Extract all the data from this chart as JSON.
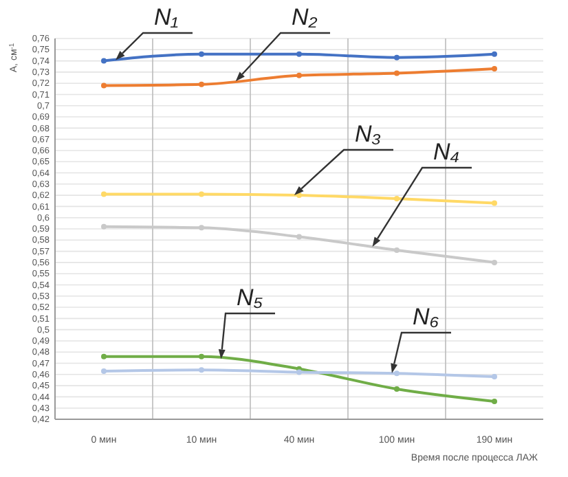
{
  "chart_data": {
    "type": "line",
    "ylabel": "A, см$^{-1}$",
    "xlabel": "Время после процесса ЛАЖ",
    "categories": [
      "0 мин",
      "10 мин",
      "40 мин",
      "100 мин",
      "190 мин"
    ],
    "ylim": [
      0.42,
      0.76
    ],
    "yticks": [
      {
        "value": 0.42,
        "label": "0,42"
      },
      {
        "value": 0.43,
        "label": "0,43"
      },
      {
        "value": 0.44,
        "label": "0,44"
      },
      {
        "value": 0.45,
        "label": "0,45"
      },
      {
        "value": 0.46,
        "label": "0,46"
      },
      {
        "value": 0.47,
        "label": "0,47"
      },
      {
        "value": 0.48,
        "label": "0,48"
      },
      {
        "value": 0.49,
        "label": "0,49"
      },
      {
        "value": 0.5,
        "label": "0,5"
      },
      {
        "value": 0.51,
        "label": "0,51"
      },
      {
        "value": 0.52,
        "label": "0,52"
      },
      {
        "value": 0.53,
        "label": "0,53"
      },
      {
        "value": 0.54,
        "label": "0,54"
      },
      {
        "value": 0.55,
        "label": "0,55"
      },
      {
        "value": 0.56,
        "label": "0,56"
      },
      {
        "value": 0.57,
        "label": "0,57"
      },
      {
        "value": 0.58,
        "label": "0,58"
      },
      {
        "value": 0.59,
        "label": "0,59"
      },
      {
        "value": 0.6,
        "label": "0,6"
      },
      {
        "value": 0.61,
        "label": "0,61"
      },
      {
        "value": 0.62,
        "label": "0,62"
      },
      {
        "value": 0.63,
        "label": "0,63"
      },
      {
        "value": 0.64,
        "label": "0,64"
      },
      {
        "value": 0.65,
        "label": "0,65"
      },
      {
        "value": 0.66,
        "label": "0,66"
      },
      {
        "value": 0.67,
        "label": "0,67"
      },
      {
        "value": 0.68,
        "label": "0,68"
      },
      {
        "value": 0.69,
        "label": "0,69"
      },
      {
        "value": 0.7,
        "label": "0,7"
      },
      {
        "value": 0.71,
        "label": "0,71"
      },
      {
        "value": 0.72,
        "label": "0,72"
      },
      {
        "value": 0.73,
        "label": "0,73"
      },
      {
        "value": 0.74,
        "label": "0,74"
      },
      {
        "value": 0.75,
        "label": "0,75"
      },
      {
        "value": 0.76,
        "label": "0,76"
      }
    ],
    "grid": true,
    "marker": "circle",
    "line_style": "solid",
    "series": [
      {
        "name": "N₁",
        "color": "#4472c4",
        "values": [
          0.74,
          0.746,
          0.746,
          0.743,
          0.746
        ]
      },
      {
        "name": "N₂",
        "color": "#ed7d31",
        "values": [
          0.718,
          0.719,
          0.727,
          0.729,
          0.733
        ]
      },
      {
        "name": "N₃",
        "color": "#ffd966",
        "values": [
          0.621,
          0.621,
          0.62,
          0.617,
          0.613
        ]
      },
      {
        "name": "N₄",
        "color": "#c9c9c9",
        "values": [
          0.592,
          0.591,
          0.583,
          0.571,
          0.56
        ]
      },
      {
        "name": "N₅",
        "color": "#70ad47",
        "values": [
          0.476,
          0.476,
          0.465,
          0.447,
          0.436
        ]
      },
      {
        "name": "N₆",
        "color": "#b4c7e7",
        "values": [
          0.463,
          0.464,
          0.462,
          0.461,
          0.458
        ]
      }
    ]
  }
}
